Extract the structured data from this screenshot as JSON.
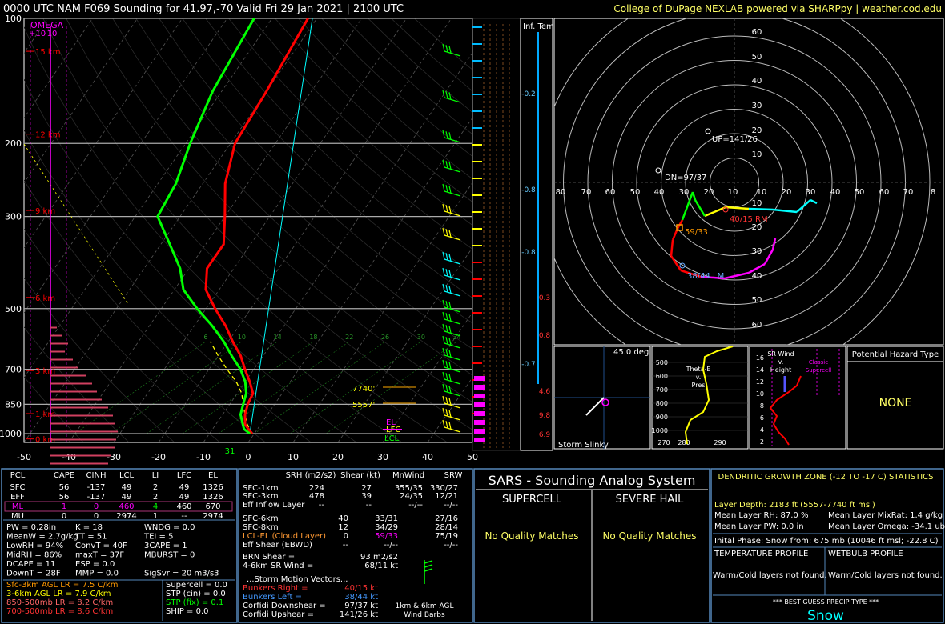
{
  "header": {
    "title": "0000 UTC NAM F069 Sounding for 41.97,-70 Valid  Fri 29 Jan 2021 | 2100 UTC",
    "credit": "College of DuPage NEXLAB powered via SHARPpy | weather.cod.edu"
  },
  "colors": {
    "temp": "#ff0000",
    "dew": "#00ff00",
    "wetbulb": "#00ffff",
    "parcel": "#ffff00",
    "omega": "#ff00ff",
    "hodo_yellow": "#ffff00",
    "accent_yellow": "#ffff66",
    "accent_cyan": "#66ccff"
  },
  "skewt": {
    "pressure_labels": [
      "100",
      "200",
      "300",
      "500",
      "700",
      "850",
      "1000"
    ],
    "pressure_values": [
      100,
      200,
      300,
      500,
      700,
      850,
      1000
    ],
    "temp_ticks": [
      "-50",
      "-40",
      "-30",
      "-20",
      "-10",
      "0",
      "10",
      "20",
      "30",
      "40",
      "50"
    ],
    "height_labels": [
      "15 km",
      "12 km",
      "9 km",
      "6 km",
      "3 km",
      "1 km",
      "0 km"
    ],
    "omega_label": "OMEGA",
    "omega_ticks": [
      "+10",
      "-10"
    ],
    "mixing_ratio_labels": [
      "6",
      "10",
      "14",
      "18",
      "22",
      "26",
      "30",
      "34"
    ],
    "eff_layer_top": "7740'",
    "eff_layer_bottom": "5557'",
    "marker_el": "EL",
    "marker_lfc": "LFC",
    "marker_lcl": "LCL",
    "surface_temp_label": "31"
  },
  "chart_data": {
    "type": "line",
    "series": [
      {
        "name": "Temperature",
        "points": [
          [
            1000,
            -0.5
          ],
          [
            975,
            -2
          ],
          [
            950,
            -3.5
          ],
          [
            900,
            -5
          ],
          [
            850,
            -6
          ],
          [
            800,
            -6.5
          ],
          [
            750,
            -9
          ],
          [
            700,
            -12
          ],
          [
            650,
            -15
          ],
          [
            600,
            -19
          ],
          [
            550,
            -23
          ],
          [
            500,
            -28
          ],
          [
            450,
            -33
          ],
          [
            400,
            -36
          ],
          [
            350,
            -36
          ],
          [
            300,
            -40
          ],
          [
            250,
            -45
          ],
          [
            200,
            -49
          ],
          [
            150,
            -50
          ],
          [
            100,
            -52
          ]
        ]
      },
      {
        "name": "Dewpoint",
        "points": [
          [
            1000,
            -1
          ],
          [
            975,
            -3
          ],
          [
            950,
            -4
          ],
          [
            900,
            -6
          ],
          [
            850,
            -7
          ],
          [
            800,
            -8
          ],
          [
            750,
            -10
          ],
          [
            700,
            -13
          ],
          [
            650,
            -17
          ],
          [
            600,
            -21
          ],
          [
            550,
            -26
          ],
          [
            500,
            -32
          ],
          [
            450,
            -38
          ],
          [
            400,
            -42
          ],
          [
            350,
            -48
          ],
          [
            300,
            -55
          ],
          [
            250,
            -56
          ],
          [
            200,
            -59
          ],
          [
            150,
            -62
          ],
          [
            100,
            -64
          ]
        ]
      }
    ],
    "pressure_range": [
      100,
      1050
    ],
    "temp_range": [
      -50,
      50
    ]
  },
  "wetbulb": {
    "label": "Inf. Temp.",
    "ticks": [
      "-0.2",
      "-0.8",
      "-0.8",
      "-0.7"
    ]
  },
  "right_markers": [
    "0.3",
    "0.8",
    "4.6",
    "9.8",
    "6.9"
  ],
  "hodograph": {
    "ring_labels": [
      "60",
      "50",
      "40",
      "30",
      "20",
      "10",
      "10",
      "20",
      "30",
      "40",
      "50",
      "60"
    ],
    "x_labels": [
      "80",
      "70",
      "60",
      "50",
      "40",
      "30",
      "20",
      "10",
      "10",
      "20",
      "30",
      "40",
      "50",
      "60",
      "70",
      "8"
    ],
    "up_label": "UP=141/26",
    "dn_label": "DN=97/37",
    "rm_label": "40/15 RM",
    "lm_label": "38/44 LM",
    "lcl_label": "59/33"
  },
  "slinky": {
    "angle": "45.0 deg",
    "label": "Storm Slinky"
  },
  "thetae": {
    "label": "Theta-E v. Pres",
    "pres_ticks": [
      "500",
      "600",
      "700",
      "800",
      "900",
      "1000"
    ],
    "x_ticks": [
      "270",
      "280",
      "290"
    ]
  },
  "srwind": {
    "label": "SR Wind v. Height",
    "classic": "Classic Supercell",
    "h_ticks": [
      "16",
      "14",
      "12",
      "10",
      "8",
      "6",
      "4",
      "2"
    ]
  },
  "hazard": {
    "title": "Potential Hazard Type",
    "value": "NONE"
  },
  "parcels": {
    "headers": [
      "PCL",
      "CAPE",
      "CINH",
      "LCL",
      "LI",
      "LFC",
      "EL"
    ],
    "rows": [
      [
        "SFC",
        "56",
        "-137",
        "49",
        "2",
        "49",
        "1326"
      ],
      [
        "EFF",
        "56",
        "-137",
        "49",
        "2",
        "49",
        "1326"
      ],
      [
        "ML",
        "1",
        "0",
        "460",
        "4",
        "460",
        "670"
      ],
      [
        "MU",
        "0",
        "0",
        "2974",
        "1",
        "--",
        "2974"
      ]
    ]
  },
  "indices": {
    "col1": [
      "PW = 0.28in",
      "MeanW = 2.7g/kg",
      "LowRH = 94%",
      "MidRH = 86%",
      "DCAPE = 11",
      "DownT = 28F"
    ],
    "col2": [
      "K = 18",
      "TT = 51",
      "ConvT = 40F",
      "maxT = 37F",
      "ESP = 0.0",
      "MMP = 0.0"
    ],
    "col3": [
      "WNDG = 0.0",
      "TEI = 5",
      "3CAPE = 1",
      "MBURST = 0",
      "",
      "SigSvr = 20 m3/s3"
    ]
  },
  "lapse": [
    "Sfc-3km AGL LR = 7.5 C/km",
    "3-6km AGL LR = 7.9 C/km",
    "850-500mb LR = 8.2 C/km",
    "700-500mb LR = 8.6 C/km"
  ],
  "composite": [
    "Supercell = 0.0",
    "STP (cin) = 0.0",
    "STP (fix) = 0.1",
    "SHIP = 0.0"
  ],
  "kinematics": {
    "headers": [
      "SRH (m2/s2)",
      "Shear (kt)",
      "MnWind",
      "SRW"
    ],
    "rows": [
      [
        "SFC-1km",
        "224",
        "27",
        "355/35",
        "330/27"
      ],
      [
        "SFC-3km",
        "478",
        "39",
        "24/35",
        "12/21"
      ],
      [
        "Eff Inflow Layer",
        "--",
        "--",
        "--/--",
        "--/--"
      ],
      [
        "SFC-6km",
        "40",
        "33/31",
        "27/16",
        ""
      ],
      [
        "SFC-8km",
        "12",
        "34/29",
        "28/14",
        ""
      ],
      [
        "LCL-EL (Cloud Layer)",
        "0",
        "59/33",
        "75/19",
        ""
      ],
      [
        "Eff Shear (EBWD)",
        "--",
        "--/--",
        "--/--",
        ""
      ]
    ],
    "brn": "BRN Shear =",
    "brn_val": "93 m2/s2",
    "sr46": "4-6km SR Wind =",
    "sr46_val": "68/11 kt",
    "storm_motion": "...Storm Motion Vectors...",
    "motions": [
      [
        "Bunkers Right =",
        "40/15 kt"
      ],
      [
        "Bunkers Left =",
        "38/44 kt"
      ],
      [
        "Corfidi Downshear =",
        "97/37 kt"
      ],
      [
        "Corfidi Upshear =",
        "141/26 kt"
      ]
    ],
    "barbs_label": "1km & 6km AGL Wind Barbs"
  },
  "sars": {
    "title": "SARS - Sounding Analog System",
    "supercell": "SUPERCELL",
    "hail": "SEVERE HAIL",
    "supercell_val": "No Quality Matches",
    "hail_val": "No Quality Matches"
  },
  "dgz": {
    "title": "DENDRITIC GROWTH ZONE (-12 TO -17 C) STATISTICS",
    "depth": "Layer Depth: 2183 ft (5557-7740 ft msl)",
    "rh": "Mean Layer RH: 87.0 %",
    "mix": "Mean Layer MixRat: 1.4 g/kg",
    "pw": "Mean Layer PW: 0.0 in",
    "omega": "Mean Layer Omega: -34.1 ub/s",
    "initial": "Inital Phase: Snow from: 675 mb (10046 ft msl; -22.8 C)",
    "temp_profile": "TEMPERATURE PROFILE",
    "wb_profile": "WETBULB PROFILE",
    "temp_msg": "Warm/Cold layers not found.",
    "wb_msg": "Warm/Cold layers not found.",
    "precip_title": "*** BEST GUESS PRECIP TYPE ***",
    "precip": "Snow"
  }
}
